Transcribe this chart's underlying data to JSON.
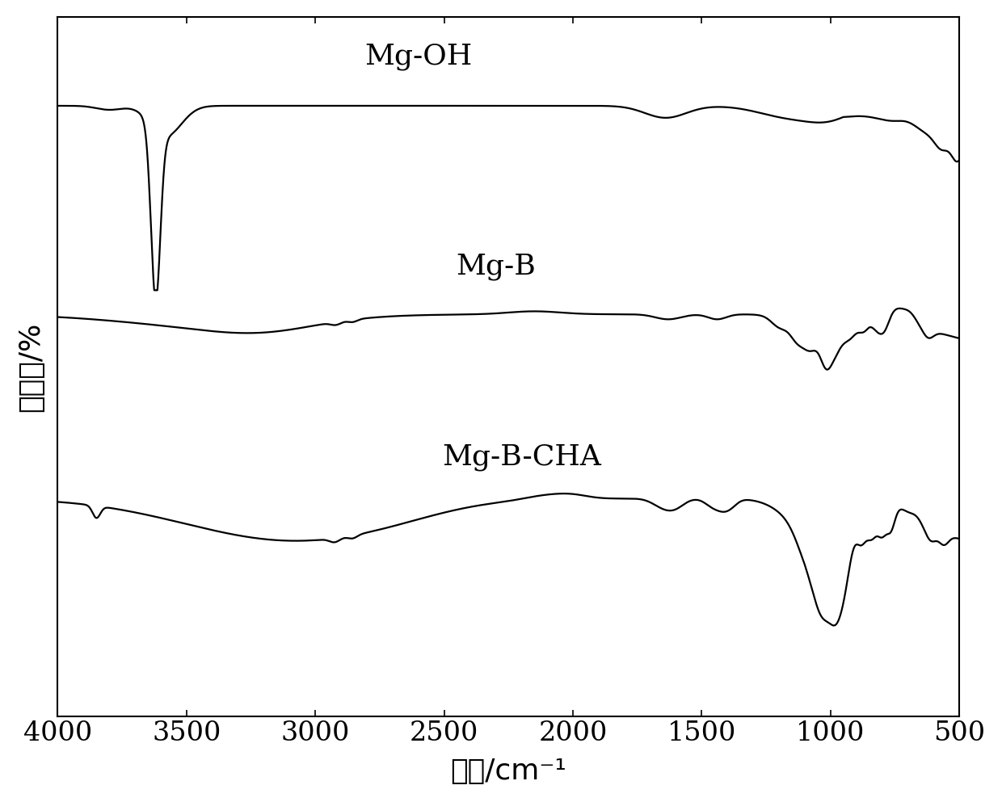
{
  "xlabel": "波数/cm⁻¹",
  "ylabel": "透射率/%",
  "xmin": 500,
  "xmax": 4000,
  "background_color": "#ffffff",
  "line_color": "#000000",
  "line_width": 1.6,
  "labels": {
    "MgOH": "Mg-OH",
    "MgB": "Mg-B",
    "MgBCHA": "Mg-B-CHA"
  },
  "xticks": [
    4000,
    3500,
    3000,
    2500,
    2000,
    1500,
    1000,
    500
  ],
  "figsize": [
    12.4,
    9.93
  ],
  "dpi": 100
}
